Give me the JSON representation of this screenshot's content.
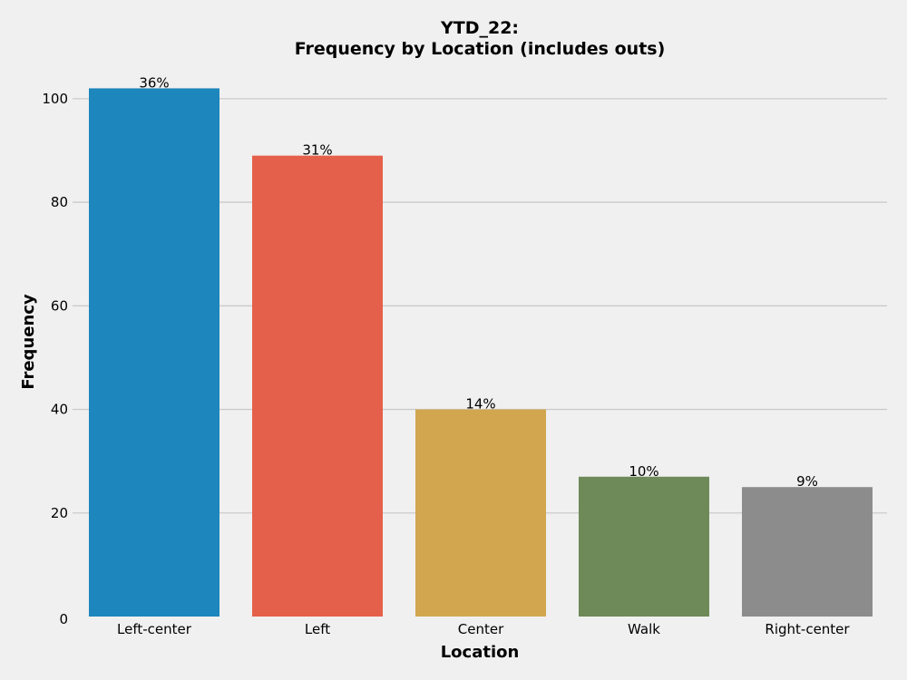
{
  "chart_data": {
    "type": "bar",
    "title_lines": [
      "YTD_22:",
      "Frequency by Location (includes outs)"
    ],
    "xlabel": "Location",
    "ylabel": "Frequency",
    "categories": [
      "Left-center",
      "Left",
      "Center",
      "Walk",
      "Right-center"
    ],
    "values": [
      102,
      89,
      40,
      27,
      25
    ],
    "data_labels": [
      "36%",
      "31%",
      "14%",
      "10%",
      "9%"
    ],
    "colors": [
      "#1c86bd",
      "#e5604a",
      "#d1a64f",
      "#6d8a58",
      "#8c8c8c"
    ],
    "ylim": [
      0,
      104
    ],
    "yticks": [
      0,
      20,
      40,
      60,
      80,
      100
    ],
    "yticklabels": [
      "0",
      "20",
      "40",
      "60",
      "80",
      "100"
    ],
    "grid": "horizontal",
    "background": "#f0f0f0"
  }
}
